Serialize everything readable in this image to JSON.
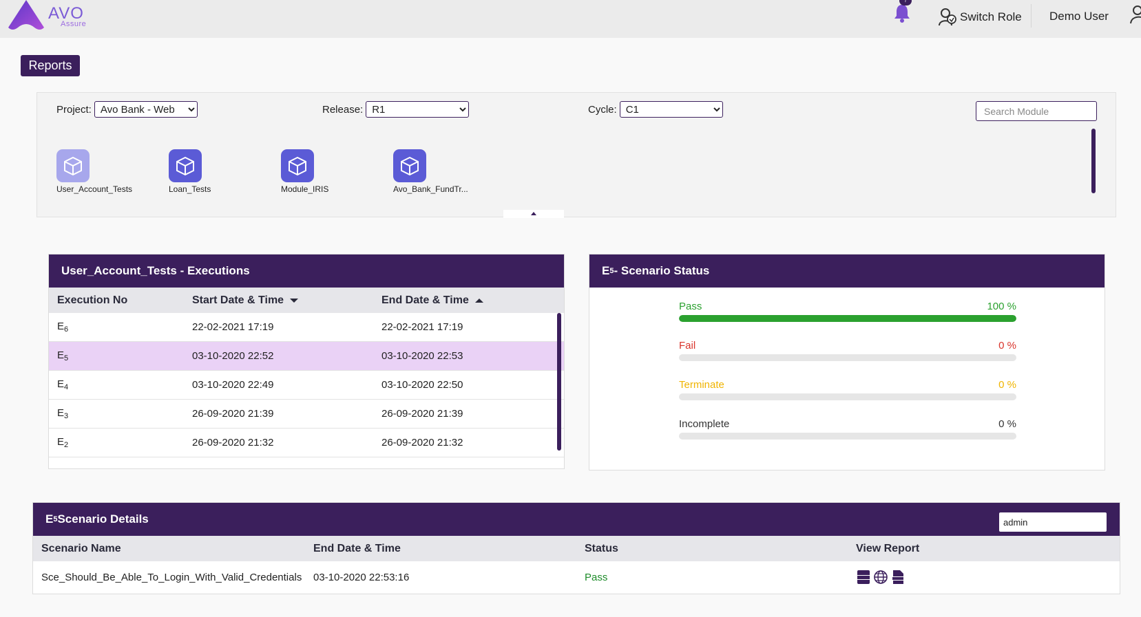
{
  "app": {
    "logo_text": "AVO",
    "logo_sub": "Assure",
    "notification_count": "?",
    "switch_role_label": "Switch Role",
    "user_name": "Demo User"
  },
  "page": {
    "title": "Reports"
  },
  "filters": {
    "project_label": "Project:",
    "project_value": "Avo Bank - Web",
    "release_label": "Release:",
    "release_value": "R1",
    "cycle_label": "Cycle:",
    "cycle_value": "C1",
    "search_placeholder": "Search Module"
  },
  "modules": [
    {
      "label": "User_Account_Tests",
      "active": true
    },
    {
      "label": "Loan_Tests",
      "active": false
    },
    {
      "label": "Module_IRIS",
      "active": false
    },
    {
      "label": "Avo_Bank_FundTr...",
      "active": false
    }
  ],
  "executions": {
    "title": "User_Account_Tests - Executions",
    "columns": {
      "no": "Execution No",
      "start": "Start Date & Time",
      "end": "End Date & Time"
    },
    "rows": [
      {
        "prefix": "E",
        "num": "6",
        "start": "22-02-2021 17:19",
        "end": "22-02-2021 17:19",
        "selected": false
      },
      {
        "prefix": "E",
        "num": "5",
        "start": "03-10-2020 22:52",
        "end": "03-10-2020 22:53",
        "selected": true
      },
      {
        "prefix": "E",
        "num": "4",
        "start": "03-10-2020 22:49",
        "end": "03-10-2020 22:50",
        "selected": false
      },
      {
        "prefix": "E",
        "num": "3",
        "start": "26-09-2020 21:39",
        "end": "26-09-2020 21:39",
        "selected": false
      },
      {
        "prefix": "E",
        "num": "2",
        "start": "26-09-2020 21:32",
        "end": "26-09-2020 21:32",
        "selected": false
      }
    ]
  },
  "scenario_status": {
    "title_prefix": "E",
    "title_num": "5",
    "title_suffix": " - Scenario Status",
    "items": [
      {
        "label": "Pass",
        "value": "100 %",
        "percent": 100,
        "color": "#2ba12f"
      },
      {
        "label": "Fail",
        "value": "0 %",
        "percent": 0,
        "color": "#d9342b"
      },
      {
        "label": "Terminate",
        "value": "0 %",
        "percent": 0,
        "color": "#f0b400"
      },
      {
        "label": "Incomplete",
        "value": "0 %",
        "percent": 0,
        "color": "#333333"
      }
    ]
  },
  "scenario_details": {
    "title_prefix": "E",
    "title_num": "5",
    "title_suffix": " Scenario Details",
    "filter_value": "admin",
    "columns": {
      "name": "Scenario Name",
      "end": "End Date & Time",
      "status": "Status",
      "report": "View Report"
    },
    "rows": [
      {
        "name": "Sce_Should_Be_Able_To_Login_With_Valid_Credentials",
        "end": "03-10-2020 22:53:16",
        "status": "Pass",
        "report_icons": [
          "pdf-icon",
          "web-icon",
          "json-icon"
        ]
      }
    ]
  },
  "colors": {
    "brand": "#3b1f5c",
    "module": "#5b5bd6",
    "module_active": "#a7a7ec",
    "selected_row": "#ead2f6",
    "pass": "#1e8c2a"
  }
}
